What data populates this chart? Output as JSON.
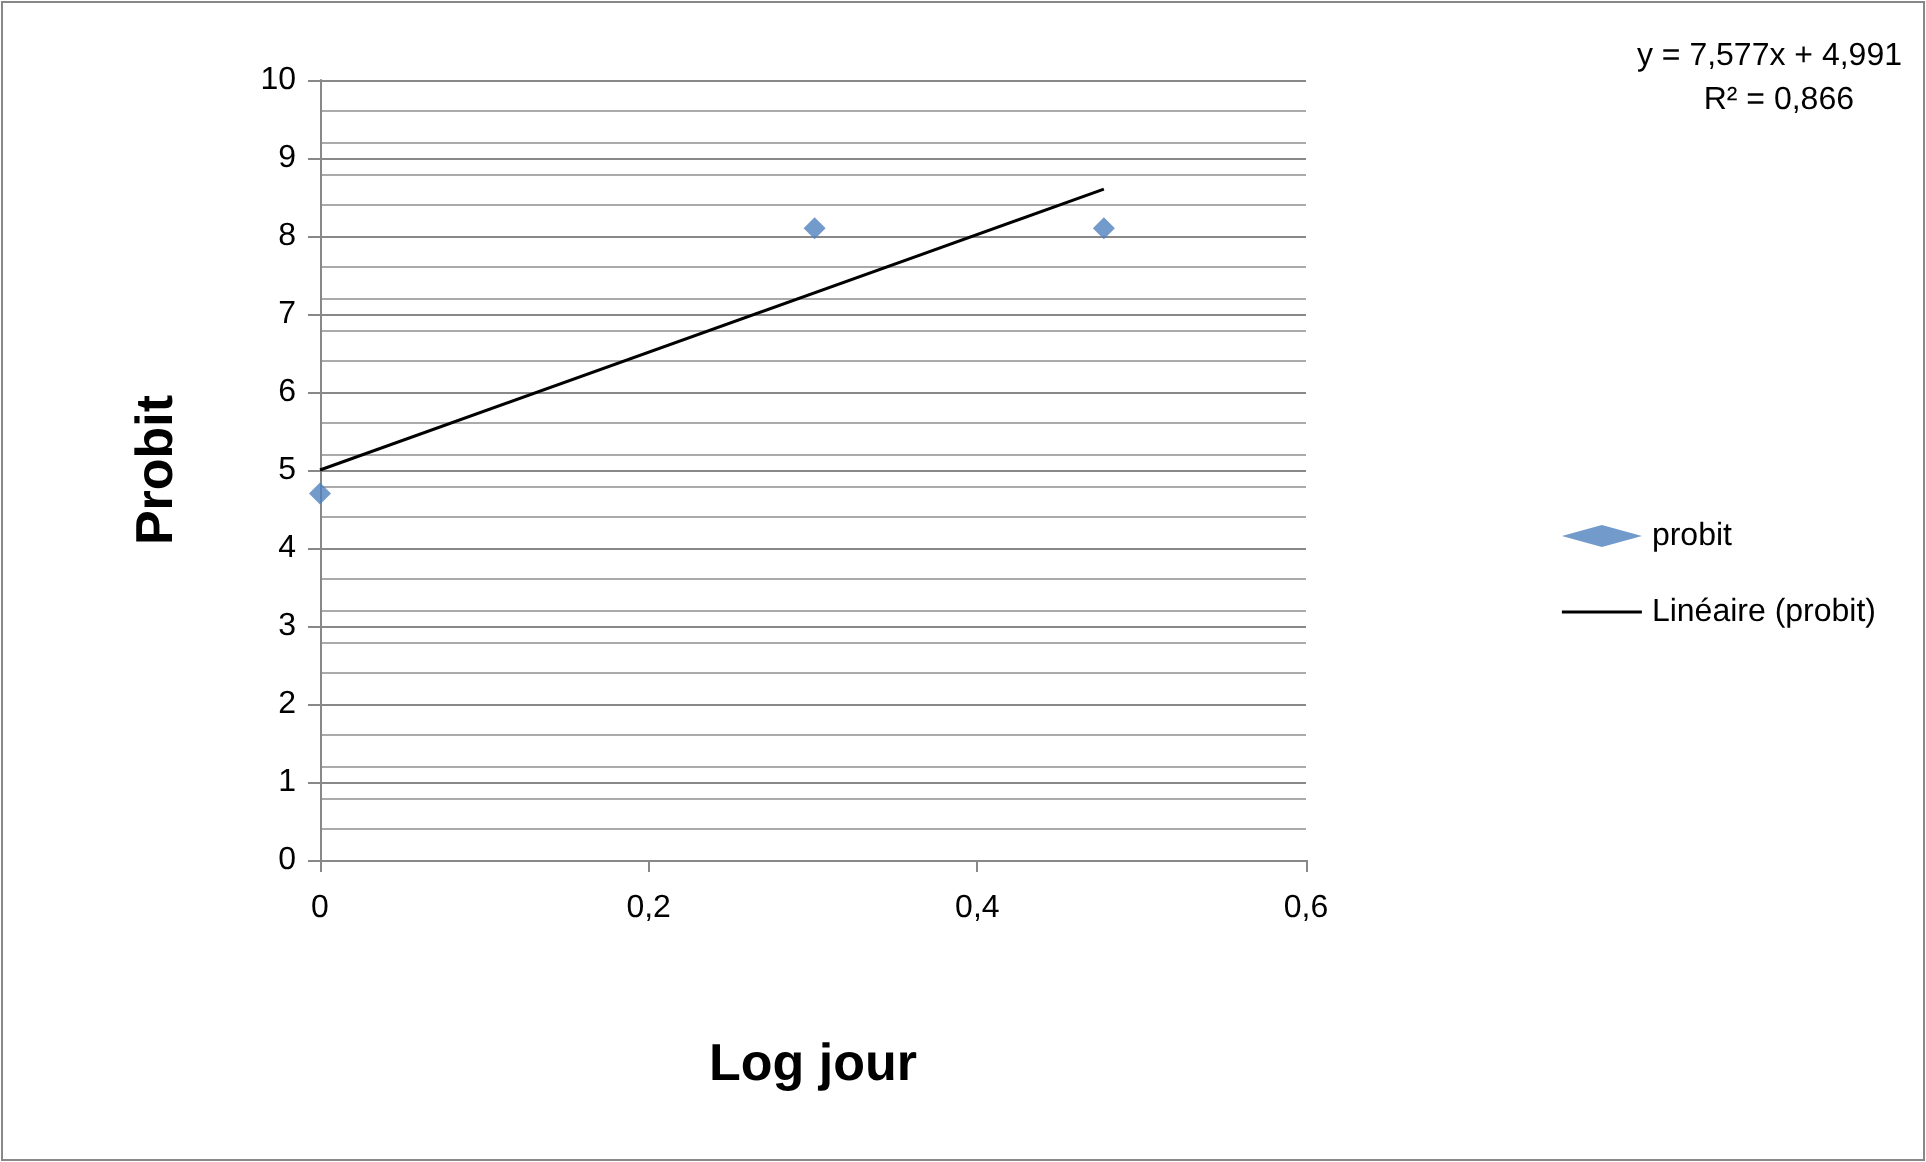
{
  "chart_data": {
    "type": "scatter",
    "xlabel": "Log jour",
    "ylabel": "Probit",
    "series": [
      {
        "name": "probit",
        "color": "#4f81bd",
        "marker": "diamond",
        "x": [
          0,
          0.301,
          0.477
        ],
        "values": [
          4.7,
          8.1,
          8.1
        ]
      },
      {
        "name": "Linéaire (probit)",
        "type": "line",
        "color": "#000000",
        "marker": "none",
        "line_style": "solid",
        "x": [
          0,
          0.477
        ],
        "values": [
          5.0,
          8.6
        ]
      }
    ],
    "xlim": [
      0,
      0.6
    ],
    "xticks": [
      0,
      {
        "value": 0.2,
        "label": "0,2"
      },
      {
        "value": 0.4,
        "label": "0,4"
      },
      {
        "value": 0.6,
        "label": "0,6"
      }
    ],
    "ylim": [
      0,
      10
    ],
    "yticks": [
      0,
      1,
      2,
      3,
      4,
      5,
      6,
      7,
      8,
      9,
      10
    ],
    "grid": "y",
    "legend": "right",
    "annotations": [
      "y = 7,577x + 4,991",
      "R² = 0,866"
    ]
  }
}
